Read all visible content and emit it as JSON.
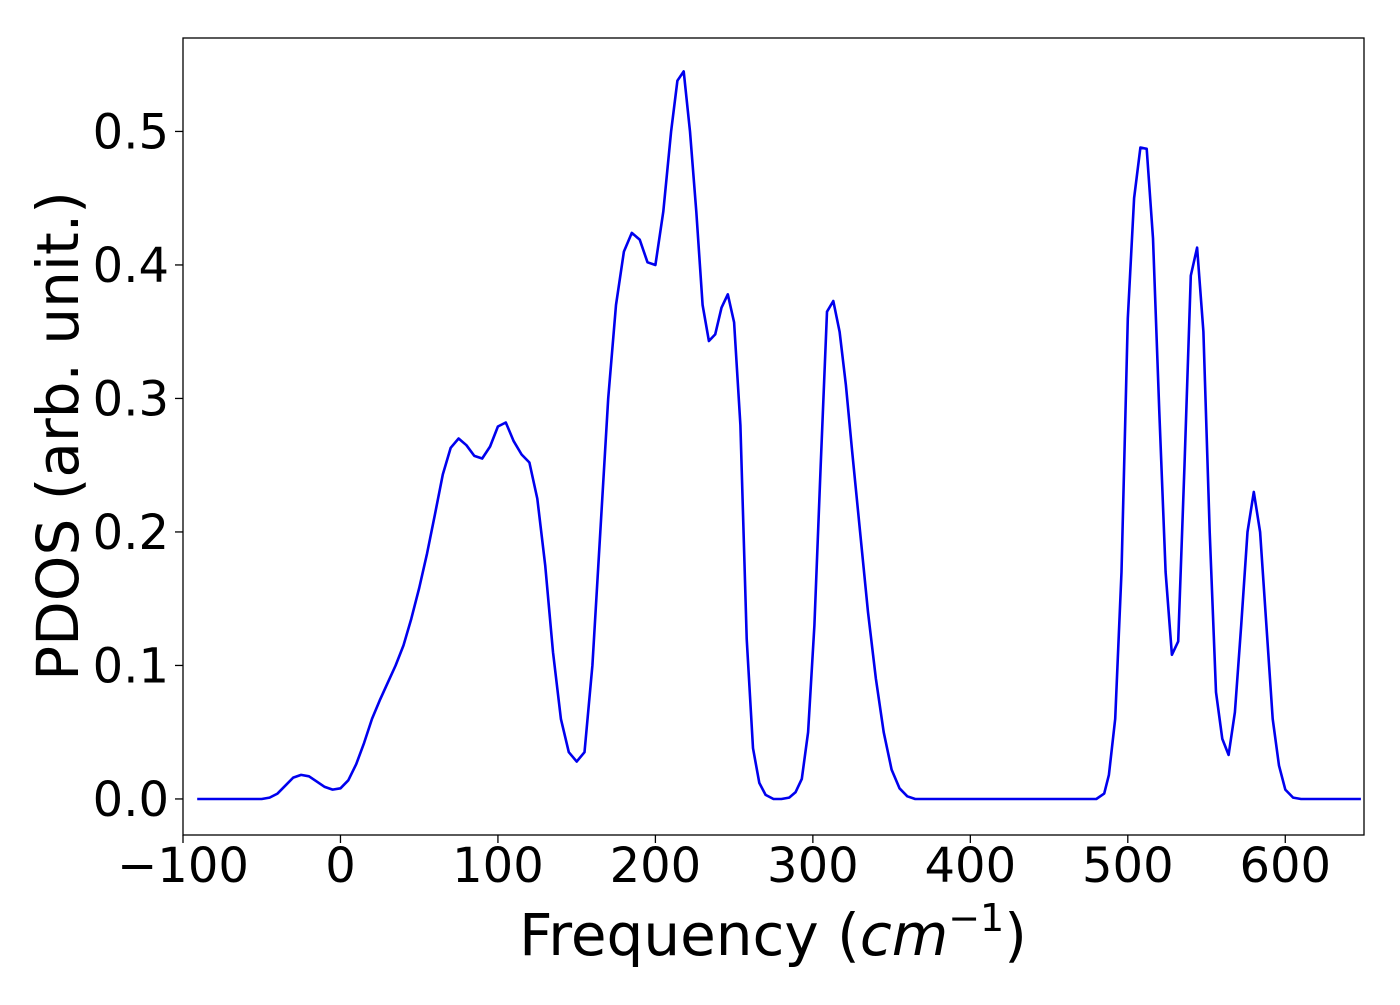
{
  "chart_data": {
    "type": "line",
    "title": "",
    "xlabel": "Frequency",
    "xlabel_unit_base": "cm",
    "xlabel_unit_exp": "−1",
    "ylabel": "PDOS (arb. unit.)",
    "xlim": [
      -100,
      650
    ],
    "ylim": [
      -0.027,
      0.57
    ],
    "xticks": [
      -100,
      0,
      100,
      200,
      300,
      400,
      500,
      600
    ],
    "xtick_labels": [
      "−100",
      "0",
      "100",
      "200",
      "300",
      "400",
      "500",
      "600"
    ],
    "yticks": [
      0.0,
      0.1,
      0.2,
      0.3,
      0.4,
      0.5
    ],
    "ytick_labels": [
      "0.0",
      "0.1",
      "0.2",
      "0.3",
      "0.4",
      "0.5"
    ],
    "grid": false,
    "legend": "none",
    "line_color": "#0000ee",
    "series": [
      {
        "x": [
          -91,
          -80,
          -70,
          -60,
          -50,
          -45,
          -40,
          -35,
          -30,
          -25,
          -20,
          -15,
          -10,
          -5,
          0,
          5,
          10,
          15,
          20,
          25,
          30,
          35,
          40,
          45,
          50,
          55,
          60,
          65,
          70,
          75,
          80,
          85,
          90,
          95,
          100,
          105,
          110,
          115,
          120,
          125,
          130,
          135,
          140,
          145,
          150,
          155,
          160,
          165,
          170,
          175,
          180,
          185,
          190,
          195,
          200,
          205,
          210,
          214,
          218,
          222,
          226,
          230,
          234,
          238,
          242,
          246,
          250,
          254,
          258,
          262,
          266,
          270,
          275,
          280,
          285,
          289,
          293,
          297,
          301,
          305,
          309,
          313,
          317,
          321,
          325,
          330,
          335,
          340,
          345,
          350,
          355,
          360,
          365,
          370,
          380,
          400,
          450,
          480,
          485,
          488,
          492,
          496,
          500,
          504,
          508,
          512,
          516,
          520,
          524,
          528,
          532,
          536,
          540,
          544,
          548,
          552,
          556,
          560,
          564,
          568,
          572,
          576,
          580,
          584,
          588,
          592,
          596,
          600,
          605,
          610,
          620,
          648
        ],
        "y": [
          0.0,
          0.0,
          0.0,
          0.0,
          0.0,
          0.001,
          0.004,
          0.01,
          0.016,
          0.018,
          0.017,
          0.013,
          0.009,
          0.007,
          0.008,
          0.014,
          0.026,
          0.042,
          0.06,
          0.074,
          0.087,
          0.1,
          0.115,
          0.135,
          0.158,
          0.184,
          0.213,
          0.243,
          0.263,
          0.27,
          0.265,
          0.257,
          0.255,
          0.264,
          0.279,
          0.282,
          0.268,
          0.258,
          0.252,
          0.225,
          0.175,
          0.11,
          0.06,
          0.035,
          0.028,
          0.035,
          0.1,
          0.2,
          0.3,
          0.37,
          0.41,
          0.424,
          0.419,
          0.402,
          0.4,
          0.44,
          0.5,
          0.538,
          0.545,
          0.5,
          0.44,
          0.37,
          0.343,
          0.348,
          0.368,
          0.378,
          0.357,
          0.28,
          0.12,
          0.038,
          0.012,
          0.003,
          0.0,
          0.0,
          0.001,
          0.005,
          0.015,
          0.05,
          0.13,
          0.25,
          0.365,
          0.373,
          0.35,
          0.31,
          0.26,
          0.2,
          0.14,
          0.09,
          0.05,
          0.022,
          0.008,
          0.002,
          0.0,
          0.0,
          0.0,
          0.0,
          0.0,
          0.0,
          0.004,
          0.018,
          0.06,
          0.17,
          0.36,
          0.45,
          0.488,
          0.487,
          0.42,
          0.29,
          0.17,
          0.108,
          0.118,
          0.25,
          0.392,
          0.413,
          0.35,
          0.2,
          0.08,
          0.045,
          0.033,
          0.065,
          0.13,
          0.2,
          0.23,
          0.2,
          0.13,
          0.06,
          0.025,
          0.007,
          0.001,
          0.0,
          0.0,
          0.0
        ]
      }
    ]
  }
}
